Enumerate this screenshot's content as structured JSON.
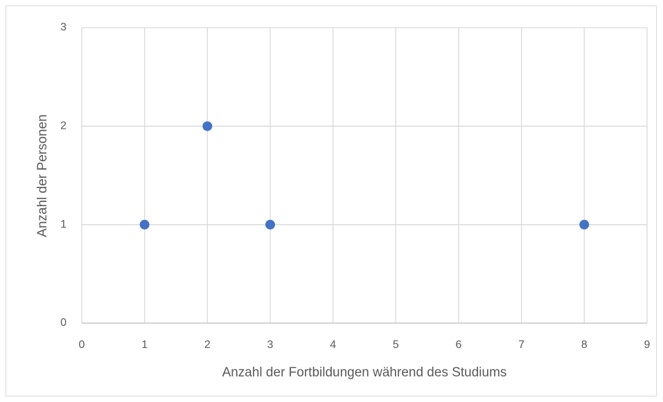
{
  "chart_data": {
    "type": "scatter",
    "x": [
      1,
      2,
      3,
      8
    ],
    "values": [
      1,
      2,
      1,
      1
    ],
    "color": "#4472c4",
    "xlim": [
      0,
      9
    ],
    "xticks": [
      0,
      1,
      2,
      3,
      4,
      5,
      6,
      7,
      8,
      9
    ],
    "ylim": [
      0,
      3
    ],
    "yticks": [
      0,
      1,
      2,
      3
    ],
    "grid": true,
    "xlabel": "Anzahl der Fortbildungen während des Studiums",
    "ylabel": "Anzahl der Personen"
  }
}
